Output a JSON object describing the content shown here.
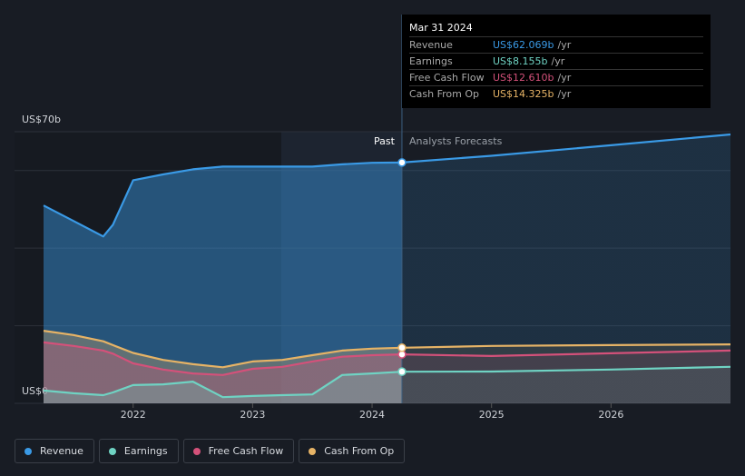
{
  "chart_data": {
    "type": "line",
    "x": [
      2021.25,
      2021.5,
      2021.75,
      2021.83,
      2022.0,
      2022.25,
      2022.5,
      2022.75,
      2023.0,
      2023.25,
      2023.5,
      2023.75,
      2024.0,
      2024.25,
      2025.0,
      2026.0,
      2027.0
    ],
    "series": [
      {
        "name": "Revenue",
        "color": "#3a9ae6",
        "values": [
          51,
          47,
          43,
          46,
          57.5,
          59,
          60.3,
          61,
          61,
          61,
          61,
          61.6,
          62,
          62.069,
          63.8,
          66.5,
          69.3
        ]
      },
      {
        "name": "Earnings",
        "color": "#6fd3c3",
        "values": [
          3.3,
          2.6,
          2.1,
          2.8,
          4.7,
          4.9,
          5.6,
          1.6,
          1.9,
          2.1,
          2.3,
          7.3,
          7.7,
          8.155,
          8.2,
          8.7,
          9.4
        ]
      },
      {
        "name": "Free Cash Flow",
        "color": "#d4517a",
        "values": [
          15.7,
          14.8,
          13.6,
          12.8,
          10.3,
          8.7,
          7.7,
          7.3,
          8.9,
          9.4,
          10.8,
          12,
          12.4,
          12.61,
          12.2,
          12.9,
          13.6
        ]
      },
      {
        "name": "Cash From Op",
        "color": "#e6b366",
        "values": [
          18.7,
          17.6,
          16,
          15,
          13,
          11.2,
          10.1,
          9.3,
          10.8,
          11.2,
          12.4,
          13.6,
          14.1,
          14.325,
          14.8,
          15,
          15.2
        ]
      }
    ],
    "xlim": [
      2021.25,
      2027.0
    ],
    "xticks": [
      2022,
      2023,
      2024,
      2025,
      2026
    ],
    "ylim": [
      0,
      70
    ],
    "yticks": [
      {
        "value": 0,
        "label": "US$0"
      },
      {
        "value": 70,
        "label": "US$70b"
      }
    ],
    "ygrid": [
      0,
      20,
      40,
      60,
      70
    ],
    "forecast_start": 2024.25,
    "past_label": "Past",
    "forecast_label": "Analysts Forecasts",
    "tooltip": {
      "title": "Mar 31 2024",
      "rows": [
        {
          "label": "Revenue",
          "value": "US$62.069b",
          "unit": "/yr"
        },
        {
          "label": "Earnings",
          "value": "US$8.155b",
          "unit": "/yr"
        },
        {
          "label": "Free Cash Flow",
          "value": "US$12.610b",
          "unit": "/yr"
        },
        {
          "label": "Cash From Op",
          "value": "US$14.325b",
          "unit": "/yr"
        }
      ]
    }
  }
}
